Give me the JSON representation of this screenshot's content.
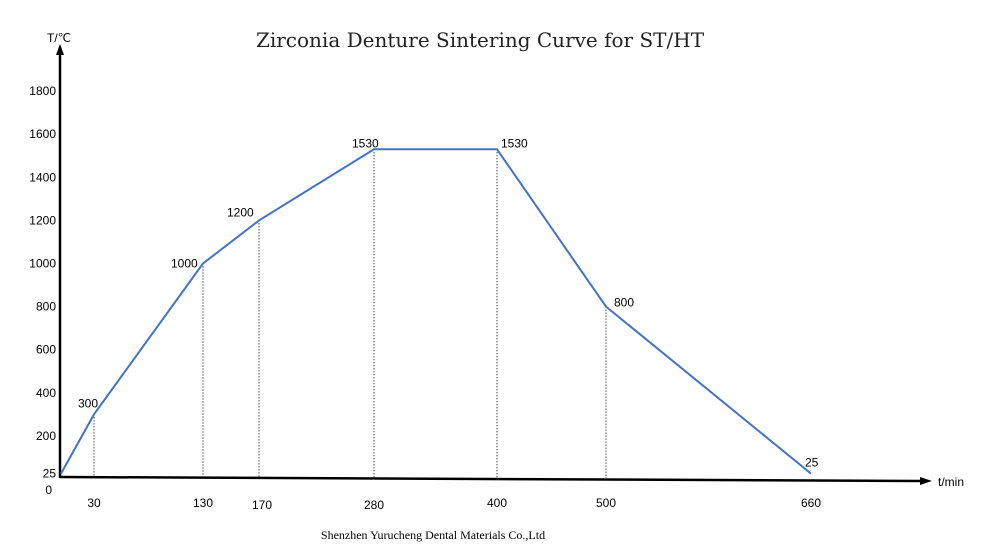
{
  "chart_data": {
    "type": "line",
    "title": "Zirconia Denture Sintering Curve for ST/HT",
    "xlabel": "t/min",
    "ylabel": "T/℃",
    "footer": "Shenzhen Yurucheng Dental Materials Co.,Ltd",
    "x_ticks": [
      "30",
      "130",
      "170",
      "280",
      "400",
      "500",
      "660"
    ],
    "y_ticks": [
      "0",
      "25",
      "200",
      "400",
      "600",
      "800",
      "1000",
      "1200",
      "1400",
      "1600",
      "1800"
    ],
    "x": [
      0,
      30,
      130,
      170,
      280,
      400,
      500,
      660
    ],
    "y": [
      25,
      300,
      1000,
      1200,
      1530,
      1530,
      800,
      25
    ],
    "point_labels": [
      "",
      "300",
      "1000",
      "1200",
      "1530",
      "1530",
      "800",
      "25"
    ],
    "ylim": [
      0,
      1900
    ],
    "grid": false,
    "line_color": "#4472c4"
  }
}
